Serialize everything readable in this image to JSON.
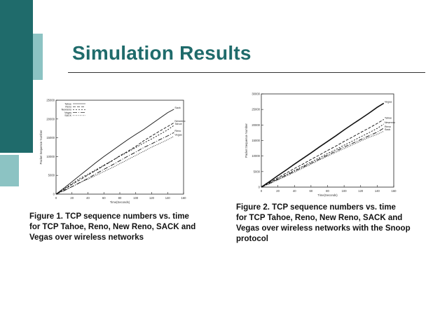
{
  "slide": {
    "title": "Simulation Results",
    "colors": {
      "accent_dark": "#1f6b6b",
      "accent_light": "#8cc3c3",
      "title": "#1f6b6b"
    }
  },
  "captions": [
    {
      "lines": [
        "Figure 1. TCP sequence numbers vs.  time",
        "for TCP Tahoe, Reno, New Reno, SACK and",
        "Vegas over wireless networks"
      ]
    },
    {
      "lines": [
        "Figure 2. TCP sequence numbers vs.  time",
        "for TCP Tahoe, Reno, New Reno, SACK and",
        "Vegas over wireless networks with the Snoop",
        "protocol"
      ]
    }
  ],
  "chart_data": [
    {
      "type": "line",
      "xlabel": "Time(Seconds)",
      "ylabel": "Packet Sequence Number",
      "xlim": [
        0,
        160
      ],
      "ylim": [
        0,
        25000
      ],
      "xticks": [
        0,
        20,
        40,
        60,
        80,
        100,
        120,
        140,
        160
      ],
      "yticks": [
        0,
        5000,
        10000,
        15000,
        20000,
        25000
      ],
      "legend_position": "top-left",
      "legend": [
        "Tahoe",
        "Reno",
        "Newreno",
        "Vegas",
        "SACK"
      ],
      "series": [
        {
          "name": "Sack",
          "x": [
            0,
            10,
            20,
            30,
            40,
            50,
            60,
            70,
            80,
            90,
            100,
            110,
            120,
            130,
            140,
            148
          ],
          "y": [
            0,
            1600,
            3300,
            5000,
            6700,
            8400,
            10000,
            11500,
            13000,
            14500,
            15900,
            17200,
            18700,
            20200,
            21700,
            22600
          ]
        },
        {
          "name": "Newreno",
          "x": [
            0,
            10,
            20,
            30,
            40,
            50,
            60,
            70,
            80,
            90,
            100,
            110,
            120,
            130,
            140,
            148
          ],
          "y": [
            0,
            1200,
            2600,
            3800,
            5100,
            6300,
            7600,
            8800,
            10200,
            11400,
            12700,
            14200,
            15500,
            16800,
            18000,
            19000
          ]
        },
        {
          "name": "Tahoe",
          "x": [
            0,
            10,
            20,
            30,
            40,
            50,
            60,
            70,
            80,
            90,
            100,
            110,
            120,
            130,
            140,
            148
          ],
          "y": [
            0,
            1400,
            2800,
            4200,
            5300,
            6500,
            7700,
            8900,
            10100,
            11200,
            12400,
            13600,
            14700,
            15900,
            17100,
            18300
          ]
        },
        {
          "name": "Reno",
          "x": [
            0,
            10,
            20,
            30,
            40,
            50,
            60,
            70,
            80,
            90,
            100,
            110,
            120,
            130,
            140,
            148
          ],
          "y": [
            0,
            900,
            2000,
            3100,
            4200,
            5400,
            6600,
            7700,
            8900,
            10100,
            11200,
            12400,
            13400,
            14500,
            15500,
            16400
          ]
        },
        {
          "name": "Vegas",
          "x": [
            0,
            10,
            20,
            30,
            40,
            50,
            60,
            70,
            80,
            90,
            100,
            110,
            120,
            130,
            140,
            148
          ],
          "y": [
            0,
            1000,
            2000,
            3000,
            4000,
            5000,
            6000,
            7000,
            8100,
            9200,
            10300,
            11400,
            12500,
            13500,
            14500,
            15400
          ]
        }
      ],
      "end_labels": [
        "Sack",
        "Newreno",
        "Tahoe",
        "Reno",
        "Vegas"
      ]
    },
    {
      "type": "line",
      "xlabel": "Time(Seconds)",
      "ylabel": "Packet Sequence Number",
      "xlim": [
        0,
        160
      ],
      "ylim": [
        0,
        30000
      ],
      "xticks": [
        0,
        20,
        40,
        60,
        80,
        100,
        120,
        140,
        160
      ],
      "yticks": [
        0,
        5000,
        10000,
        15000,
        20000,
        25000,
        30000
      ],
      "series": [
        {
          "name": "Vegas",
          "x": [
            0,
            10,
            20,
            30,
            40,
            50,
            60,
            70,
            80,
            90,
            100,
            110,
            120,
            130,
            140,
            148
          ],
          "y": [
            0,
            1800,
            3700,
            5500,
            7400,
            9200,
            11000,
            12900,
            14700,
            16500,
            18400,
            20200,
            22000,
            23800,
            25700,
            27000
          ]
        },
        {
          "name": "Tahoe",
          "x": [
            0,
            10,
            20,
            30,
            40,
            50,
            60,
            70,
            80,
            90,
            100,
            110,
            120,
            130,
            140,
            148
          ],
          "y": [
            0,
            1500,
            3000,
            4500,
            6000,
            7400,
            8900,
            10300,
            11800,
            13200,
            14700,
            16100,
            17600,
            19000,
            20500,
            21800
          ]
        },
        {
          "name": "Newreno",
          "x": [
            0,
            10,
            20,
            30,
            40,
            50,
            60,
            70,
            80,
            90,
            100,
            110,
            120,
            130,
            140,
            148
          ],
          "y": [
            0,
            1300,
            2700,
            4000,
            5400,
            6700,
            8100,
            9400,
            10800,
            12100,
            13500,
            14800,
            16200,
            17500,
            18900,
            20300
          ]
        },
        {
          "name": "Reno",
          "x": [
            0,
            10,
            20,
            30,
            40,
            50,
            60,
            70,
            80,
            90,
            100,
            110,
            120,
            130,
            140,
            148
          ],
          "y": [
            0,
            1200,
            2500,
            3800,
            5100,
            6400,
            7700,
            9000,
            10300,
            11600,
            12900,
            14100,
            15300,
            16500,
            17700,
            19000
          ]
        },
        {
          "name": "Sack",
          "x": [
            0,
            10,
            20,
            30,
            40,
            50,
            60,
            70,
            80,
            90,
            100,
            110,
            120,
            130,
            140,
            148
          ],
          "y": [
            0,
            1100,
            2300,
            3500,
            4800,
            6100,
            7400,
            8700,
            10000,
            11200,
            12400,
            13600,
            14800,
            16000,
            17000,
            18000
          ]
        }
      ],
      "end_labels": [
        "Vegas",
        "Tahoe",
        "Newreno",
        "Reno",
        "Sack"
      ]
    }
  ]
}
